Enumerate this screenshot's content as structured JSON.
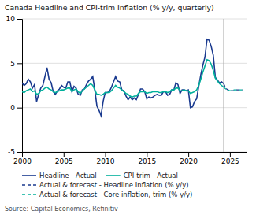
{
  "chart_data": {
    "type": "line",
    "title": "Canada Headline and CPI-trim Inflation (% y/y, quarterly)",
    "source": "Source: Capital Economics, Refinitiv",
    "xlim": [
      2000,
      2027
    ],
    "xticks": [
      2000,
      2005,
      2010,
      2015,
      2020,
      2025
    ],
    "ylim": [
      -5,
      10
    ],
    "yticks": [
      -5,
      0,
      5,
      10
    ],
    "grid": true,
    "vline_x": 2024.25,
    "series": [
      {
        "name": "Headline - Actual",
        "color": "#1a3a8f",
        "line_style": "solid",
        "x": [
          2000.0,
          2000.25,
          2000.5,
          2000.75,
          2001.0,
          2001.25,
          2001.5,
          2001.75,
          2002.0,
          2002.25,
          2002.5,
          2002.75,
          2003.0,
          2003.25,
          2003.5,
          2003.75,
          2004.0,
          2004.25,
          2004.5,
          2004.75,
          2005.0,
          2005.25,
          2005.5,
          2005.75,
          2006.0,
          2006.25,
          2006.5,
          2006.75,
          2007.0,
          2007.25,
          2007.5,
          2007.75,
          2008.0,
          2008.25,
          2008.5,
          2008.75,
          2009.0,
          2009.25,
          2009.5,
          2009.75,
          2010.0,
          2010.25,
          2010.5,
          2010.75,
          2011.0,
          2011.25,
          2011.5,
          2011.75,
          2012.0,
          2012.25,
          2012.5,
          2012.75,
          2013.0,
          2013.25,
          2013.5,
          2013.75,
          2014.0,
          2014.25,
          2014.5,
          2014.75,
          2015.0,
          2015.25,
          2015.5,
          2015.75,
          2016.0,
          2016.25,
          2016.5,
          2016.75,
          2017.0,
          2017.25,
          2017.5,
          2017.75,
          2018.0,
          2018.25,
          2018.5,
          2018.75,
          2019.0,
          2019.25,
          2019.5,
          2019.75,
          2020.0,
          2020.25,
          2020.5,
          2020.75,
          2021.0,
          2021.25,
          2021.5,
          2021.75,
          2022.0,
          2022.25,
          2022.5,
          2022.75,
          2023.0,
          2023.25,
          2023.5,
          2023.75,
          2024.0,
          2024.25
        ],
        "values": [
          2.8,
          2.5,
          2.7,
          3.2,
          2.9,
          2.2,
          2.6,
          0.7,
          1.5,
          2.2,
          2.5,
          3.5,
          4.5,
          3.2,
          2.8,
          1.8,
          1.5,
          1.9,
          2.1,
          2.5,
          2.3,
          2.2,
          2.9,
          2.9,
          1.8,
          2.4,
          2.2,
          1.5,
          1.4,
          2.0,
          2.1,
          2.6,
          3.0,
          3.2,
          3.5,
          2.0,
          0.2,
          -0.3,
          -0.9,
          0.7,
          1.7,
          1.7,
          1.8,
          2.3,
          2.9,
          3.5,
          3.0,
          2.9,
          2.0,
          1.9,
          1.3,
          0.9,
          1.2,
          0.9,
          1.1,
          0.9,
          1.5,
          2.1,
          2.1,
          1.8,
          1.0,
          1.2,
          1.1,
          1.2,
          1.4,
          1.5,
          1.4,
          1.4,
          1.8,
          1.8,
          1.4,
          1.5,
          2.0,
          2.0,
          2.8,
          2.6,
          1.6,
          2.0,
          2.0,
          1.9,
          2.0,
          0.0,
          0.1,
          0.7,
          1.0,
          2.4,
          3.7,
          4.8,
          5.7,
          7.7,
          7.6,
          6.9,
          5.9,
          3.4,
          3.1,
          2.8,
          2.9,
          2.7
        ]
      },
      {
        "name": "CPI-trim - Actual",
        "color": "#00b09b",
        "line_style": "solid",
        "x": [
          2000.0,
          2000.25,
          2000.5,
          2000.75,
          2001.0,
          2001.25,
          2001.5,
          2001.75,
          2002.0,
          2002.25,
          2002.5,
          2002.75,
          2003.0,
          2003.25,
          2003.5,
          2003.75,
          2004.0,
          2004.25,
          2004.5,
          2004.75,
          2005.0,
          2005.25,
          2005.5,
          2005.75,
          2006.0,
          2006.25,
          2006.5,
          2006.75,
          2007.0,
          2007.25,
          2007.5,
          2007.75,
          2008.0,
          2008.25,
          2008.5,
          2008.75,
          2009.0,
          2009.25,
          2009.5,
          2009.75,
          2010.0,
          2010.25,
          2010.5,
          2010.75,
          2011.0,
          2011.25,
          2011.5,
          2011.75,
          2012.0,
          2012.25,
          2012.5,
          2012.75,
          2013.0,
          2013.25,
          2013.5,
          2013.75,
          2014.0,
          2014.25,
          2014.5,
          2014.75,
          2015.0,
          2015.25,
          2015.5,
          2015.75,
          2016.0,
          2016.25,
          2016.5,
          2016.75,
          2017.0,
          2017.25,
          2017.5,
          2017.75,
          2018.0,
          2018.25,
          2018.5,
          2018.75,
          2019.0,
          2019.25,
          2019.5,
          2019.75,
          2020.0,
          2020.25,
          2020.5,
          2020.75,
          2021.0,
          2021.25,
          2021.5,
          2021.75,
          2022.0,
          2022.25,
          2022.5,
          2022.75,
          2023.0,
          2023.25,
          2023.5,
          2023.75,
          2024.0,
          2024.25
        ],
        "values": [
          1.8,
          1.7,
          1.9,
          2.0,
          2.1,
          1.8,
          1.9,
          1.5,
          1.6,
          1.9,
          2.0,
          2.2,
          2.3,
          2.1,
          2.0,
          1.8,
          1.7,
          1.8,
          1.9,
          2.0,
          2.0,
          2.1,
          2.2,
          2.2,
          1.8,
          2.0,
          2.1,
          1.8,
          1.6,
          1.9,
          2.1,
          2.3,
          2.5,
          2.7,
          2.5,
          2.0,
          1.5,
          1.5,
          1.4,
          1.5,
          1.7,
          1.7,
          1.7,
          1.9,
          2.2,
          2.5,
          2.3,
          2.2,
          2.0,
          1.8,
          1.6,
          1.5,
          1.3,
          1.2,
          1.3,
          1.3,
          1.6,
          1.8,
          1.8,
          1.8,
          1.6,
          1.7,
          1.7,
          1.8,
          1.8,
          1.8,
          1.7,
          1.7,
          1.8,
          1.8,
          1.7,
          1.8,
          2.0,
          2.0,
          2.2,
          2.2,
          1.9,
          1.9,
          2.0,
          1.9,
          1.9,
          1.6,
          1.7,
          1.8,
          2.0,
          2.5,
          3.2,
          4.0,
          4.7,
          5.4,
          5.3,
          4.9,
          4.2,
          3.3,
          3.0,
          2.7,
          2.5,
          2.3
        ]
      },
      {
        "name": "Actual & forecast - Headline Inflation (% y/y)",
        "color": "#1a3a8f",
        "line_style": "dashed",
        "x": [
          2024.25,
          2024.5,
          2024.75,
          2025.0,
          2025.25,
          2025.5,
          2025.75,
          2026.0,
          2026.25,
          2026.5
        ],
        "values": [
          2.7,
          2.2,
          2.0,
          1.9,
          1.9,
          1.9,
          2.0,
          2.0,
          2.0,
          2.0
        ]
      },
      {
        "name": "Actual & forecast - Core inflation, trim (% y/y)",
        "color": "#00b09b",
        "line_style": "dashed",
        "x": [
          2024.25,
          2024.5,
          2024.75,
          2025.0,
          2025.25,
          2025.5,
          2025.75,
          2026.0,
          2026.25,
          2026.5
        ],
        "values": [
          2.3,
          2.1,
          2.0,
          1.9,
          1.9,
          2.0,
          2.0,
          2.0,
          2.0,
          2.0
        ]
      }
    ]
  }
}
